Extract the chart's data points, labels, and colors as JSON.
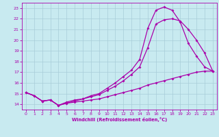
{
  "xlabel": "Windchill (Refroidissement éolien,°C)",
  "bg_color": "#c8eaf0",
  "grid_color": "#a8ccd8",
  "line_color": "#aa00aa",
  "spine_color": "#aa00aa",
  "tick_color": "#aa00aa",
  "xlim": [
    -0.5,
    23.5
  ],
  "ylim": [
    13.5,
    23.5
  ],
  "xticks": [
    0,
    1,
    2,
    3,
    4,
    5,
    6,
    7,
    8,
    9,
    10,
    11,
    12,
    13,
    14,
    15,
    16,
    17,
    18,
    19,
    20,
    21,
    22,
    23
  ],
  "yticks": [
    14,
    15,
    16,
    17,
    18,
    19,
    20,
    21,
    22,
    23
  ],
  "line1_x": [
    0,
    1,
    2,
    3,
    4,
    5,
    6,
    7,
    8,
    9,
    10,
    11,
    12,
    13,
    14,
    15,
    16,
    17,
    18,
    19,
    20,
    21,
    22,
    23
  ],
  "line1_y": [
    15.1,
    14.8,
    14.3,
    14.4,
    13.9,
    14.1,
    14.2,
    14.3,
    14.4,
    14.5,
    14.7,
    14.9,
    15.1,
    15.3,
    15.5,
    15.8,
    16.0,
    16.2,
    16.4,
    16.6,
    16.8,
    17.0,
    17.1,
    17.1
  ],
  "line2_x": [
    0,
    1,
    2,
    3,
    4,
    5,
    6,
    7,
    8,
    9,
    10,
    11,
    12,
    13,
    14,
    15,
    16,
    17,
    18,
    19,
    20,
    21,
    22,
    23
  ],
  "line2_y": [
    15.1,
    14.8,
    14.3,
    14.4,
    13.9,
    14.1,
    14.3,
    14.5,
    14.7,
    14.9,
    15.3,
    15.7,
    16.2,
    16.8,
    17.5,
    19.3,
    21.5,
    21.9,
    22.0,
    21.8,
    21.0,
    20.0,
    18.8,
    17.1
  ],
  "line3_x": [
    0,
    1,
    2,
    3,
    4,
    5,
    6,
    7,
    8,
    9,
    10,
    11,
    12,
    13,
    14,
    15,
    16,
    17,
    18,
    19,
    20,
    21,
    22,
    23
  ],
  "line3_y": [
    15.1,
    14.8,
    14.3,
    14.4,
    13.9,
    14.2,
    14.4,
    14.5,
    14.8,
    15.0,
    15.5,
    16.0,
    16.6,
    17.2,
    18.2,
    21.1,
    22.8,
    23.1,
    22.8,
    21.7,
    19.7,
    18.5,
    17.5,
    17.1
  ],
  "marker": "D",
  "markersize": 2.0,
  "linewidth": 0.9
}
